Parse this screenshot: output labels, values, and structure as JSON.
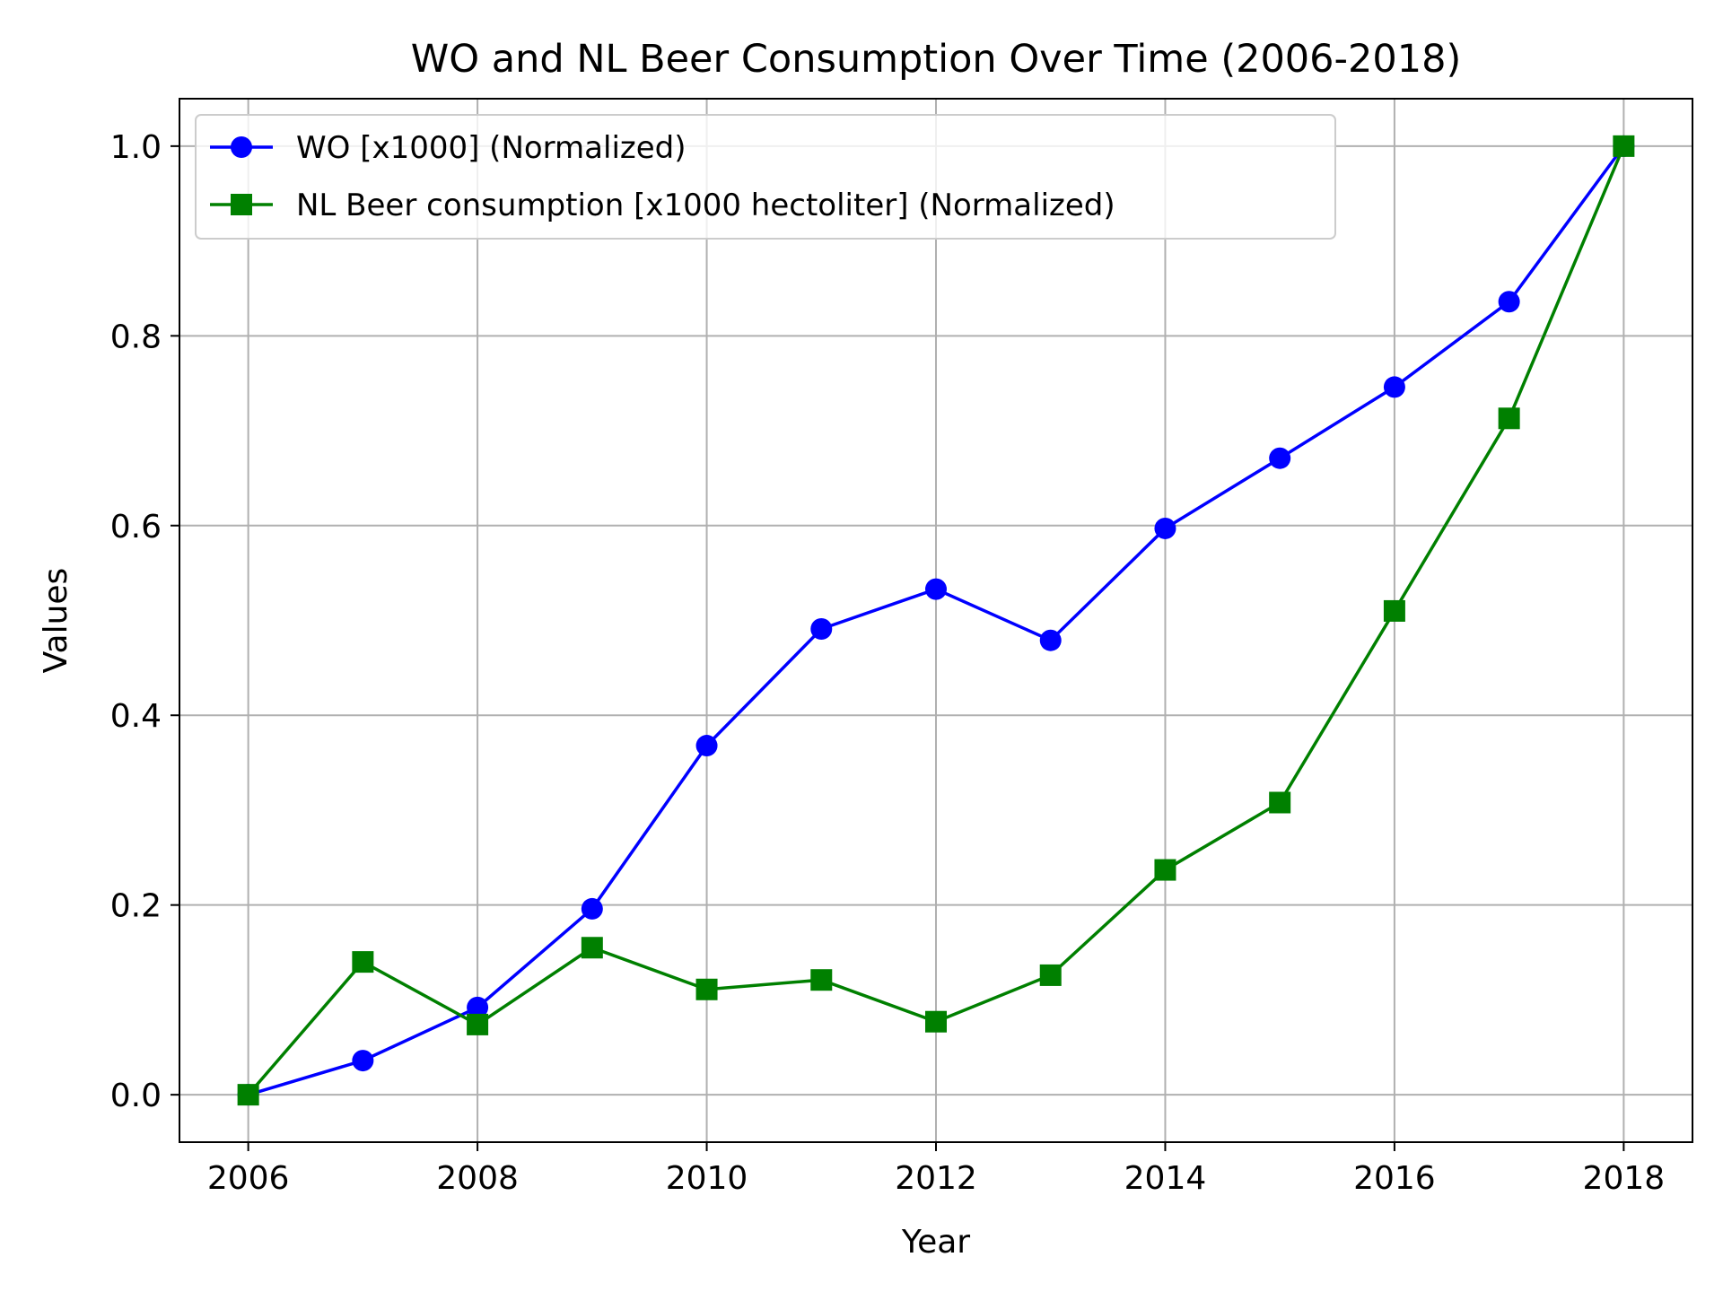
{
  "chart_data": {
    "type": "line",
    "title": "WO and NL Beer Consumption Over Time (2006-2018)",
    "xlabel": "Year",
    "ylabel": "Values",
    "x": [
      2006,
      2007,
      2008,
      2009,
      2010,
      2011,
      2012,
      2013,
      2014,
      2015,
      2016,
      2017,
      2018
    ],
    "xlim": [
      2005.4,
      2018.6
    ],
    "ylim": [
      -0.05,
      1.05
    ],
    "xticks": [
      "2006",
      "2008",
      "2010",
      "2012",
      "2014",
      "2016",
      "2018"
    ],
    "yticks": [
      "0.0",
      "0.2",
      "0.4",
      "0.6",
      "0.8",
      "1.0"
    ],
    "grid": true,
    "legend_position": "top-left",
    "series": [
      {
        "name": "WO [x1000] (Normalized)",
        "color": "#0000ff",
        "marker": "circle",
        "values": [
          0.0,
          0.036,
          0.092,
          0.196,
          0.368,
          0.491,
          0.533,
          0.479,
          0.597,
          0.671,
          0.746,
          0.836,
          1.0
        ]
      },
      {
        "name": "NL Beer consumption [x1000 hectoliter] (Normalized)",
        "color": "#008000",
        "marker": "square",
        "values": [
          0.0,
          0.14,
          0.074,
          0.155,
          0.111,
          0.121,
          0.077,
          0.126,
          0.237,
          0.308,
          0.51,
          0.713,
          1.0
        ]
      }
    ]
  }
}
